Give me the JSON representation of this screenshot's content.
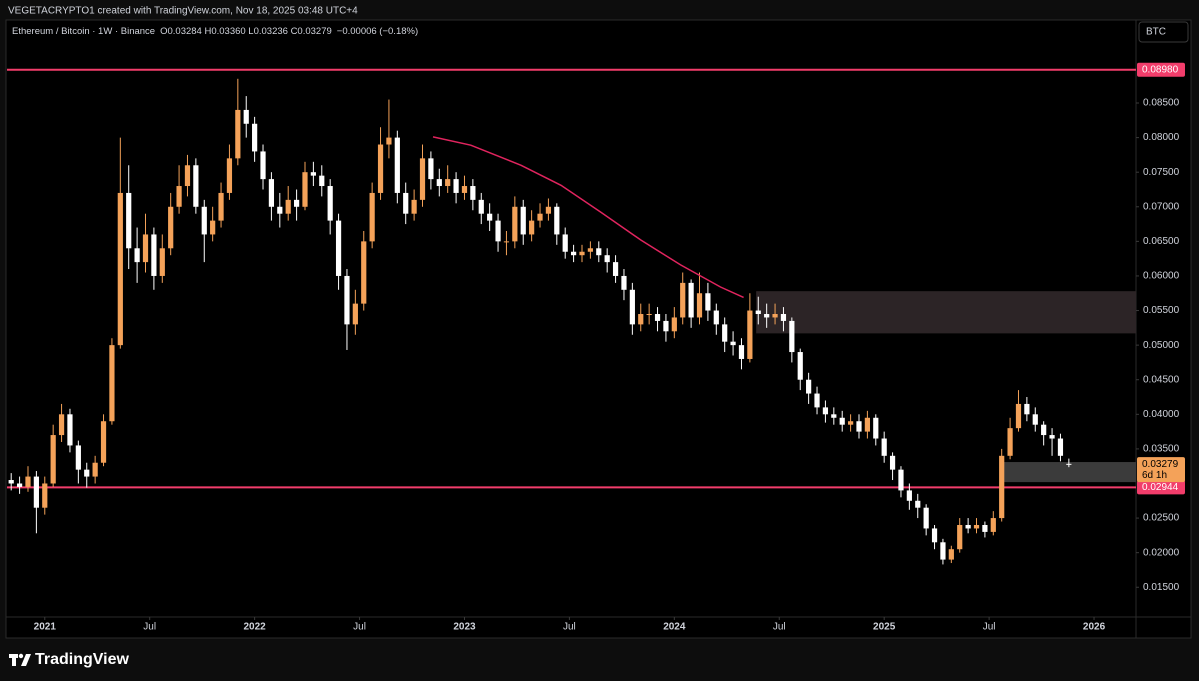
{
  "header": "VEGETACRYPTO1 created with TradingView.com, Nov 18, 2025 03:48 UTC+4",
  "footer": "TradingView",
  "chart_data": {
    "type": "candlestick",
    "title": "Ethereum / Bitcoin · 1W · Binance",
    "ohlc_text": "O0.03284 H0.03360 L0.03236 C0.03279",
    "change_text": "−0.00006 (−0.18%)",
    "unit": "BTC",
    "up_color": "#f4a259",
    "down_color": "#ffffff",
    "grid": false,
    "xlim": [
      2020.82,
      2026.2
    ],
    "xticks": [
      {
        "value": 2021,
        "label": "2021"
      },
      {
        "value": 2021.5,
        "label": "Jul"
      },
      {
        "value": 2022,
        "label": "2022"
      },
      {
        "value": 2022.5,
        "label": "Jul"
      },
      {
        "value": 2023,
        "label": "2023"
      },
      {
        "value": 2023.5,
        "label": "Jul"
      },
      {
        "value": 2024,
        "label": "2024"
      },
      {
        "value": 2024.5,
        "label": "Jul"
      },
      {
        "value": 2025,
        "label": "2025"
      },
      {
        "value": 2025.5,
        "label": "Jul"
      },
      {
        "value": 2026,
        "label": "2026"
      }
    ],
    "ylim": [
      0.0107,
      0.097
    ],
    "yticks": [
      {
        "value": 0.085,
        "label": "0.08500"
      },
      {
        "value": 0.08,
        "label": "0.08000"
      },
      {
        "value": 0.075,
        "label": "0.07500"
      },
      {
        "value": 0.07,
        "label": "0.07000"
      },
      {
        "value": 0.065,
        "label": "0.06500"
      },
      {
        "value": 0.06,
        "label": "0.06000"
      },
      {
        "value": 0.055,
        "label": "0.05500"
      },
      {
        "value": 0.05,
        "label": "0.05000"
      },
      {
        "value": 0.045,
        "label": "0.04500"
      },
      {
        "value": 0.04,
        "label": "0.04000"
      },
      {
        "value": 0.035,
        "label": "0.03500"
      },
      {
        "value": 0.025,
        "label": "0.02500"
      },
      {
        "value": 0.02,
        "label": "0.02000"
      },
      {
        "value": 0.015,
        "label": "0.01500"
      }
    ],
    "x": [
      2020.84,
      2020.88,
      2020.92,
      2020.96,
      2021,
      2021.04,
      2021.08,
      2021.12,
      2021.16,
      2021.2,
      2021.24,
      2021.28,
      2021.32,
      2021.36,
      2021.4,
      2021.44,
      2021.48,
      2021.52,
      2021.56,
      2021.6,
      2021.64,
      2021.68,
      2021.72,
      2021.76,
      2021.8,
      2021.84,
      2021.88,
      2021.92,
      2021.96,
      2022,
      2022.04,
      2022.08,
      2022.12,
      2022.16,
      2022.2,
      2022.24,
      2022.28,
      2022.32,
      2022.36,
      2022.4,
      2022.44,
      2022.48,
      2022.52,
      2022.56,
      2022.6,
      2022.64,
      2022.68,
      2022.72,
      2022.76,
      2022.8,
      2022.84,
      2022.88,
      2022.92,
      2022.96,
      2023,
      2023.04,
      2023.08,
      2023.12,
      2023.16,
      2023.2,
      2023.24,
      2023.28,
      2023.32,
      2023.36,
      2023.4,
      2023.44,
      2023.48,
      2023.52,
      2023.56,
      2023.6,
      2023.64,
      2023.68,
      2023.72,
      2023.76,
      2023.8,
      2023.84,
      2023.88,
      2023.92,
      2023.96,
      2024,
      2024.04,
      2024.08,
      2024.12,
      2024.16,
      2024.2,
      2024.24,
      2024.28,
      2024.32,
      2024.36,
      2024.4,
      2024.44,
      2024.48,
      2024.52,
      2024.56,
      2024.6,
      2024.64,
      2024.68,
      2024.72,
      2024.76,
      2024.8,
      2024.84,
      2024.88,
      2024.92,
      2024.96,
      2025,
      2025.04,
      2025.08,
      2025.12,
      2025.16,
      2025.2,
      2025.24,
      2025.28,
      2025.32,
      2025.36,
      2025.4,
      2025.44,
      2025.48,
      2025.52,
      2025.56,
      2025.6,
      2025.64,
      2025.68,
      2025.72,
      2025.76,
      2025.8,
      2025.84,
      2025.88
    ],
    "open": [
      0.0305,
      0.03,
      0.0295,
      0.031,
      0.0265,
      0.03,
      0.037,
      0.04,
      0.0355,
      0.032,
      0.031,
      0.033,
      0.039,
      0.05,
      0.072,
      0.064,
      0.062,
      0.066,
      0.06,
      0.064,
      0.07,
      0.073,
      0.076,
      0.07,
      0.066,
      0.068,
      0.072,
      0.077,
      0.084,
      0.082,
      0.078,
      0.074,
      0.07,
      0.069,
      0.071,
      0.07,
      0.075,
      0.0745,
      0.073,
      0.068,
      0.06,
      0.053,
      0.056,
      0.065,
      0.072,
      0.079,
      0.08,
      0.072,
      0.069,
      0.071,
      0.077,
      0.074,
      0.073,
      0.074,
      0.072,
      0.073,
      0.071,
      0.069,
      0.068,
      0.065,
      0.065,
      0.07,
      0.066,
      0.068,
      0.069,
      0.07,
      0.066,
      0.0635,
      0.063,
      0.0635,
      0.064,
      0.063,
      0.062,
      0.06,
      0.058,
      0.053,
      0.0545,
      0.0545,
      0.0535,
      0.052,
      0.054,
      0.059,
      0.054,
      0.0575,
      0.055,
      0.053,
      0.0505,
      0.05,
      0.048,
      0.055,
      0.0545,
      0.054,
      0.0545,
      0.0535,
      0.049,
      0.045,
      0.043,
      0.041,
      0.04,
      0.0395,
      0.0385,
      0.039,
      0.0375,
      0.0395,
      0.0365,
      0.034,
      0.032,
      0.029,
      0.0275,
      0.0265,
      0.0235,
      0.0215,
      0.019,
      0.0205,
      0.024,
      0.0235,
      0.024,
      0.023,
      0.025,
      0.034,
      0.038,
      0.0415,
      0.04,
      0.0385,
      0.037,
      0.0365,
      0.03284
    ],
    "high": [
      0.0315,
      0.031,
      0.0325,
      0.0318,
      0.031,
      0.0385,
      0.0415,
      0.0408,
      0.0362,
      0.033,
      0.034,
      0.04,
      0.051,
      0.08,
      0.076,
      0.067,
      0.069,
      0.067,
      0.066,
      0.072,
      0.076,
      0.0775,
      0.077,
      0.071,
      0.07,
      0.0735,
      0.079,
      0.0885,
      0.086,
      0.083,
      0.079,
      0.075,
      0.072,
      0.073,
      0.0725,
      0.0765,
      0.0765,
      0.076,
      0.074,
      0.069,
      0.061,
      0.058,
      0.0665,
      0.0735,
      0.0815,
      0.0855,
      0.081,
      0.0735,
      0.0725,
      0.079,
      0.078,
      0.0755,
      0.076,
      0.075,
      0.0745,
      0.074,
      0.072,
      0.0705,
      0.069,
      0.0665,
      0.0715,
      0.071,
      0.0695,
      0.0705,
      0.0712,
      0.0705,
      0.067,
      0.0645,
      0.0645,
      0.065,
      0.065,
      0.064,
      0.063,
      0.061,
      0.059,
      0.056,
      0.056,
      0.0555,
      0.0545,
      0.0555,
      0.0605,
      0.0595,
      0.0605,
      0.059,
      0.056,
      0.054,
      0.052,
      0.051,
      0.0575,
      0.057,
      0.056,
      0.056,
      0.0555,
      0.054,
      0.0495,
      0.046,
      0.044,
      0.042,
      0.041,
      0.0405,
      0.04,
      0.04,
      0.0405,
      0.04,
      0.0375,
      0.0345,
      0.0325,
      0.03,
      0.0285,
      0.027,
      0.024,
      0.022,
      0.021,
      0.025,
      0.025,
      0.025,
      0.0245,
      0.026,
      0.035,
      0.0395,
      0.0435,
      0.0425,
      0.041,
      0.039,
      0.038,
      0.0372,
      0.0336
    ],
    "low": [
      0.029,
      0.0285,
      0.0288,
      0.0228,
      0.0255,
      0.0295,
      0.036,
      0.0345,
      0.03,
      0.0294,
      0.03,
      0.0325,
      0.0385,
      0.0495,
      0.061,
      0.059,
      0.0605,
      0.058,
      0.059,
      0.063,
      0.069,
      0.0715,
      0.069,
      0.062,
      0.065,
      0.067,
      0.071,
      0.076,
      0.08,
      0.0765,
      0.0725,
      0.068,
      0.067,
      0.068,
      0.068,
      0.0695,
      0.073,
      0.0715,
      0.066,
      0.058,
      0.0493,
      0.0515,
      0.055,
      0.064,
      0.071,
      0.077,
      0.0705,
      0.0675,
      0.068,
      0.07,
      0.0725,
      0.0715,
      0.072,
      0.0705,
      0.071,
      0.0695,
      0.0675,
      0.0665,
      0.0635,
      0.063,
      0.064,
      0.0645,
      0.065,
      0.067,
      0.068,
      0.0645,
      0.0625,
      0.062,
      0.062,
      0.0625,
      0.062,
      0.0605,
      0.059,
      0.0565,
      0.0515,
      0.052,
      0.053,
      0.052,
      0.0505,
      0.051,
      0.053,
      0.0525,
      0.053,
      0.0535,
      0.0515,
      0.049,
      0.0485,
      0.0465,
      0.0475,
      0.053,
      0.0525,
      0.053,
      0.052,
      0.0475,
      0.0435,
      0.0415,
      0.04,
      0.0388,
      0.0385,
      0.0375,
      0.0375,
      0.0365,
      0.0365,
      0.0355,
      0.033,
      0.0305,
      0.028,
      0.0262,
      0.025,
      0.0225,
      0.0205,
      0.0183,
      0.0185,
      0.02,
      0.0228,
      0.0228,
      0.0222,
      0.0225,
      0.0245,
      0.0335,
      0.0375,
      0.039,
      0.0375,
      0.0355,
      0.034,
      0.0332,
      0.03236
    ],
    "close": [
      0.03,
      0.0295,
      0.031,
      0.0265,
      0.03,
      0.037,
      0.04,
      0.0355,
      0.032,
      0.031,
      0.033,
      0.039,
      0.05,
      0.072,
      0.064,
      0.062,
      0.066,
      0.06,
      0.064,
      0.07,
      0.073,
      0.076,
      0.07,
      0.066,
      0.068,
      0.072,
      0.077,
      0.084,
      0.082,
      0.078,
      0.074,
      0.07,
      0.069,
      0.071,
      0.07,
      0.075,
      0.0745,
      0.073,
      0.068,
      0.06,
      0.053,
      0.056,
      0.065,
      0.072,
      0.079,
      0.08,
      0.072,
      0.069,
      0.071,
      0.077,
      0.074,
      0.073,
      0.074,
      0.072,
      0.073,
      0.071,
      0.069,
      0.068,
      0.065,
      0.065,
      0.07,
      0.066,
      0.068,
      0.069,
      0.07,
      0.066,
      0.0635,
      0.063,
      0.0635,
      0.064,
      0.063,
      0.062,
      0.06,
      0.058,
      0.053,
      0.0545,
      0.0545,
      0.0535,
      0.052,
      0.054,
      0.059,
      0.054,
      0.0575,
      0.055,
      0.053,
      0.0505,
      0.05,
      0.048,
      0.055,
      0.0545,
      0.054,
      0.0545,
      0.0535,
      0.049,
      0.045,
      0.043,
      0.041,
      0.04,
      0.0395,
      0.0385,
      0.039,
      0.0375,
      0.0395,
      0.0365,
      0.034,
      0.032,
      0.029,
      0.0275,
      0.0265,
      0.0235,
      0.0215,
      0.019,
      0.0205,
      0.024,
      0.0235,
      0.024,
      0.023,
      0.025,
      0.034,
      0.038,
      0.0415,
      0.04,
      0.0385,
      0.037,
      0.0365,
      0.034,
      0.03279
    ],
    "hlines": [
      {
        "value": 0.0898,
        "label": "0.08980",
        "color": "#f23d6b"
      },
      {
        "value": 0.02944,
        "label": "0.02944",
        "color": "#f23d6b"
      }
    ],
    "zones": [
      {
        "x0": 2024.39,
        "y0": 0.0517,
        "y1": 0.0578,
        "color": "#2c2426"
      },
      {
        "x0": 2025.56,
        "y0": 0.0302,
        "y1": 0.0331,
        "color": "#3b3b3b"
      }
    ],
    "curve": {
      "color": "#e0245e",
      "x": [
        2022.85,
        2023.03,
        2023.27,
        2023.46,
        2023.65,
        2023.84,
        2024.03,
        2024.22,
        2024.33
      ],
      "values": [
        0.0801,
        0.0789,
        0.076,
        0.0731,
        0.0692,
        0.0652,
        0.0616,
        0.0584,
        0.0569
      ]
    },
    "last_label": "0.03279",
    "countdown": "6d 1h"
  }
}
